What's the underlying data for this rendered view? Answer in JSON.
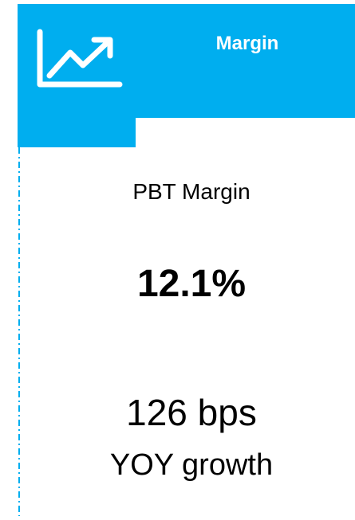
{
  "header": {
    "title": "Margin"
  },
  "kpi": {
    "label": "PBT Margin",
    "value": "12.1%",
    "change": "126 bps",
    "change_label": "YOY growth"
  }
}
